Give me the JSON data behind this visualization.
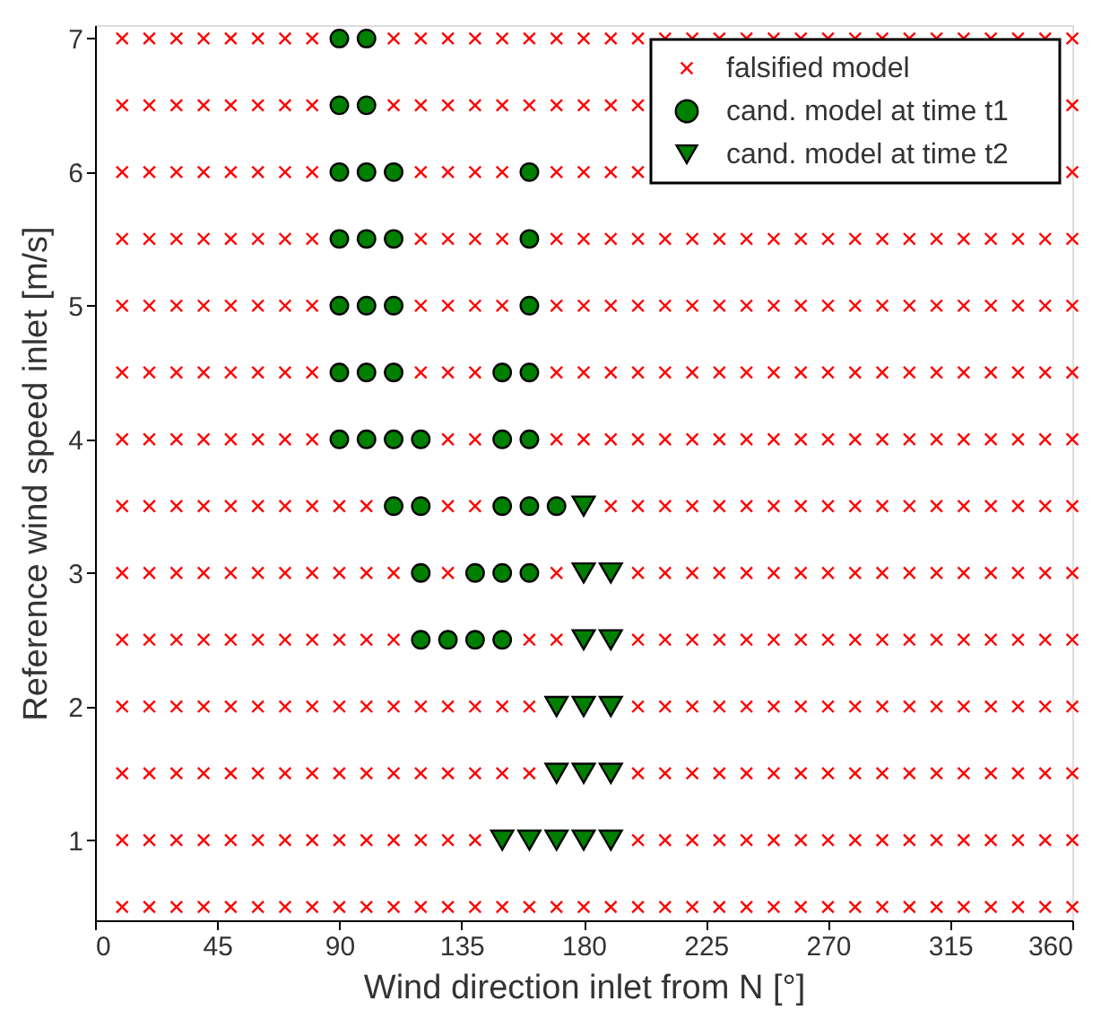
{
  "chart_data": {
    "type": "scatter",
    "xlabel": "Wind direction inlet from N [°]",
    "ylabel": "Reference wind speed inlet [m/s]",
    "xlim": [
      0,
      360
    ],
    "ylim": [
      0.4,
      7.1
    ],
    "xticks": [
      0,
      45,
      90,
      135,
      180,
      225,
      270,
      315,
      360
    ],
    "yticks": [
      1,
      2,
      3,
      4,
      5,
      6,
      7
    ],
    "grid": false,
    "legend": "top right",
    "series": [
      {
        "name": "falsified model",
        "marker": "cross",
        "color": "#ff0000",
        "x": [
          10,
          20,
          30,
          40,
          50,
          60,
          70,
          80,
          110,
          120,
          130,
          140,
          150,
          160,
          170,
          180,
          190,
          200,
          210,
          220,
          230,
          240,
          250,
          260,
          270,
          280,
          290,
          300,
          310,
          320,
          330,
          340,
          350,
          360,
          10,
          20,
          30,
          40,
          50,
          60,
          70,
          80,
          110,
          120,
          130,
          140,
          150,
          160,
          170,
          180,
          190,
          200,
          360,
          10,
          20,
          30,
          40,
          50,
          60,
          70,
          80,
          120,
          130,
          140,
          150,
          170,
          180,
          190,
          200,
          360,
          10,
          20,
          30,
          40,
          50,
          60,
          70,
          80,
          120,
          130,
          140,
          150,
          170,
          180,
          190,
          200,
          210,
          220,
          230,
          240,
          250,
          260,
          270,
          280,
          290,
          300,
          310,
          320,
          330,
          340,
          350,
          360,
          10,
          20,
          30,
          40,
          50,
          60,
          70,
          80,
          120,
          130,
          140,
          150,
          170,
          180,
          190,
          200,
          210,
          220,
          230,
          240,
          250,
          260,
          270,
          280,
          290,
          300,
          310,
          320,
          330,
          340,
          350,
          360,
          10,
          20,
          30,
          40,
          50,
          60,
          70,
          80,
          120,
          130,
          140,
          170,
          180,
          190,
          200,
          210,
          220,
          230,
          240,
          250,
          260,
          270,
          280,
          290,
          300,
          310,
          320,
          330,
          340,
          350,
          360,
          10,
          20,
          30,
          40,
          50,
          60,
          70,
          80,
          130,
          140,
          170,
          180,
          190,
          200,
          210,
          220,
          230,
          240,
          250,
          260,
          270,
          280,
          290,
          300,
          310,
          320,
          330,
          340,
          350,
          360,
          10,
          20,
          30,
          40,
          50,
          60,
          70,
          80,
          90,
          100,
          130,
          140,
          190,
          200,
          210,
          220,
          230,
          240,
          250,
          260,
          270,
          280,
          290,
          300,
          310,
          320,
          330,
          340,
          350,
          360,
          10,
          20,
          30,
          40,
          50,
          60,
          70,
          80,
          90,
          100,
          110,
          130,
          170,
          200,
          210,
          220,
          230,
          240,
          250,
          260,
          270,
          280,
          290,
          300,
          310,
          320,
          330,
          340,
          350,
          360,
          10,
          20,
          30,
          40,
          50,
          60,
          70,
          80,
          90,
          100,
          110,
          160,
          170,
          200,
          210,
          220,
          230,
          240,
          250,
          260,
          270,
          280,
          290,
          300,
          310,
          320,
          330,
          340,
          350,
          360,
          10,
          20,
          30,
          40,
          50,
          60,
          70,
          80,
          90,
          100,
          110,
          120,
          130,
          140,
          150,
          160,
          200,
          210,
          220,
          230,
          240,
          250,
          260,
          270,
          280,
          290,
          300,
          310,
          320,
          330,
          340,
          350,
          360,
          10,
          20,
          30,
          40,
          50,
          60,
          70,
          80,
          90,
          100,
          110,
          120,
          130,
          140,
          150,
          160,
          200,
          210,
          220,
          230,
          240,
          250,
          260,
          270,
          280,
          290,
          300,
          310,
          320,
          330,
          340,
          350,
          360,
          10,
          20,
          30,
          40,
          50,
          60,
          70,
          80,
          90,
          100,
          110,
          120,
          130,
          140,
          200,
          210,
          220,
          230,
          240,
          250,
          260,
          270,
          280,
          290,
          300,
          310,
          320,
          330,
          340,
          350,
          360,
          10,
          20,
          30,
          40,
          50,
          60,
          70,
          80,
          90,
          100,
          110,
          120,
          130,
          140,
          150,
          160,
          170,
          180,
          190,
          200,
          210,
          220,
          230,
          240,
          250,
          260,
          270,
          280,
          290,
          300,
          310,
          320,
          330,
          340,
          350,
          360
        ],
        "values": [
          7,
          7,
          7,
          7,
          7,
          7,
          7,
          7,
          7,
          7,
          7,
          7,
          7,
          7,
          7,
          7,
          7,
          7,
          7,
          7,
          7,
          7,
          7,
          7,
          7,
          7,
          7,
          7,
          7,
          7,
          7,
          7,
          7,
          7,
          6.5,
          6.5,
          6.5,
          6.5,
          6.5,
          6.5,
          6.5,
          6.5,
          6.5,
          6.5,
          6.5,
          6.5,
          6.5,
          6.5,
          6.5,
          6.5,
          6.5,
          6.5,
          6.5,
          6,
          6,
          6,
          6,
          6,
          6,
          6,
          6,
          6,
          6,
          6,
          6,
          6,
          6,
          6,
          6,
          6,
          5.5,
          5.5,
          5.5,
          5.5,
          5.5,
          5.5,
          5.5,
          5.5,
          5.5,
          5.5,
          5.5,
          5.5,
          5.5,
          5.5,
          5.5,
          5.5,
          5.5,
          5.5,
          5.5,
          5.5,
          5.5,
          5.5,
          5.5,
          5.5,
          5.5,
          5.5,
          5.5,
          5.5,
          5.5,
          5.5,
          5.5,
          5.5,
          5,
          5,
          5,
          5,
          5,
          5,
          5,
          5,
          5,
          5,
          5,
          5,
          5,
          5,
          5,
          5,
          5,
          5,
          5,
          5,
          5,
          5,
          5,
          5,
          5,
          5,
          5,
          5,
          5,
          5,
          5,
          5,
          4.5,
          4.5,
          4.5,
          4.5,
          4.5,
          4.5,
          4.5,
          4.5,
          4.5,
          4.5,
          4.5,
          4.5,
          4.5,
          4.5,
          4.5,
          4.5,
          4.5,
          4.5,
          4.5,
          4.5,
          4.5,
          4.5,
          4.5,
          4.5,
          4.5,
          4.5,
          4.5,
          4.5,
          4.5,
          4.5,
          4.5,
          4,
          4,
          4,
          4,
          4,
          4,
          4,
          4,
          4,
          4,
          4,
          4,
          4,
          4,
          4,
          4,
          4,
          4,
          4,
          4,
          4,
          4,
          4,
          4,
          4,
          4,
          4,
          4,
          4,
          4,
          3.5,
          3.5,
          3.5,
          3.5,
          3.5,
          3.5,
          3.5,
          3.5,
          3.5,
          3.5,
          3.5,
          3.5,
          3.5,
          3.5,
          3.5,
          3.5,
          3.5,
          3.5,
          3.5,
          3.5,
          3.5,
          3.5,
          3.5,
          3.5,
          3.5,
          3.5,
          3.5,
          3.5,
          3.5,
          3.5,
          3,
          3,
          3,
          3,
          3,
          3,
          3,
          3,
          3,
          3,
          3,
          3,
          3,
          3,
          3,
          3,
          3,
          3,
          3,
          3,
          3,
          3,
          3,
          3,
          3,
          3,
          3,
          3,
          3,
          3,
          2.5,
          2.5,
          2.5,
          2.5,
          2.5,
          2.5,
          2.5,
          2.5,
          2.5,
          2.5,
          2.5,
          2.5,
          2.5,
          2.5,
          2.5,
          2.5,
          2.5,
          2.5,
          2.5,
          2.5,
          2.5,
          2.5,
          2.5,
          2.5,
          2.5,
          2.5,
          2.5,
          2.5,
          2.5,
          2.5,
          2,
          2,
          2,
          2,
          2,
          2,
          2,
          2,
          2,
          2,
          2,
          2,
          2,
          2,
          2,
          2,
          2,
          2,
          2,
          2,
          2,
          2,
          2,
          2,
          2,
          2,
          2,
          2,
          2,
          2,
          2,
          2,
          2,
          1.5,
          1.5,
          1.5,
          1.5,
          1.5,
          1.5,
          1.5,
          1.5,
          1.5,
          1.5,
          1.5,
          1.5,
          1.5,
          1.5,
          1.5,
          1.5,
          1.5,
          1.5,
          1.5,
          1.5,
          1.5,
          1.5,
          1.5,
          1.5,
          1.5,
          1.5,
          1.5,
          1.5,
          1.5,
          1.5,
          1.5,
          1.5,
          1.5,
          1,
          1,
          1,
          1,
          1,
          1,
          1,
          1,
          1,
          1,
          1,
          1,
          1,
          1,
          1,
          1,
          1,
          1,
          1,
          1,
          1,
          1,
          1,
          1,
          1,
          1,
          1,
          1,
          1,
          1,
          1,
          0.5,
          0.5,
          0.5,
          0.5,
          0.5,
          0.5,
          0.5,
          0.5,
          0.5,
          0.5,
          0.5,
          0.5,
          0.5,
          0.5,
          0.5,
          0.5,
          0.5,
          0.5,
          0.5,
          0.5,
          0.5,
          0.5,
          0.5,
          0.5,
          0.5,
          0.5,
          0.5,
          0.5,
          0.5,
          0.5,
          0.5,
          0.5,
          0.5,
          0.5,
          0.5,
          0.5
        ]
      },
      {
        "name": "cand. model at time t1",
        "marker": "circle",
        "color": "#008000",
        "x": [
          90,
          100,
          90,
          100,
          90,
          100,
          110,
          160,
          90,
          100,
          110,
          160,
          90,
          100,
          110,
          160,
          90,
          100,
          110,
          150,
          160,
          90,
          100,
          110,
          120,
          150,
          160,
          110,
          120,
          150,
          160,
          170,
          120,
          140,
          150,
          160,
          120,
          130,
          140,
          150
        ],
        "values": [
          7,
          7,
          6.5,
          6.5,
          6,
          6,
          6,
          6,
          5.5,
          5.5,
          5.5,
          5.5,
          5,
          5,
          5,
          5,
          4.5,
          4.5,
          4.5,
          4.5,
          4.5,
          4,
          4,
          4,
          4,
          4,
          4,
          3.5,
          3.5,
          3.5,
          3.5,
          3.5,
          3,
          3,
          3,
          3,
          2.5,
          2.5,
          2.5,
          2.5
        ]
      },
      {
        "name": "cand. model at time t2",
        "marker": "triangle",
        "color": "#008000",
        "x": [
          180,
          180,
          190,
          180,
          190,
          170,
          180,
          190,
          170,
          180,
          190,
          150,
          160,
          170,
          180,
          190
        ],
        "values": [
          3.5,
          3,
          3,
          2.5,
          2.5,
          2,
          2,
          2,
          1.5,
          1.5,
          1.5,
          1,
          1,
          1,
          1,
          1
        ]
      }
    ]
  }
}
